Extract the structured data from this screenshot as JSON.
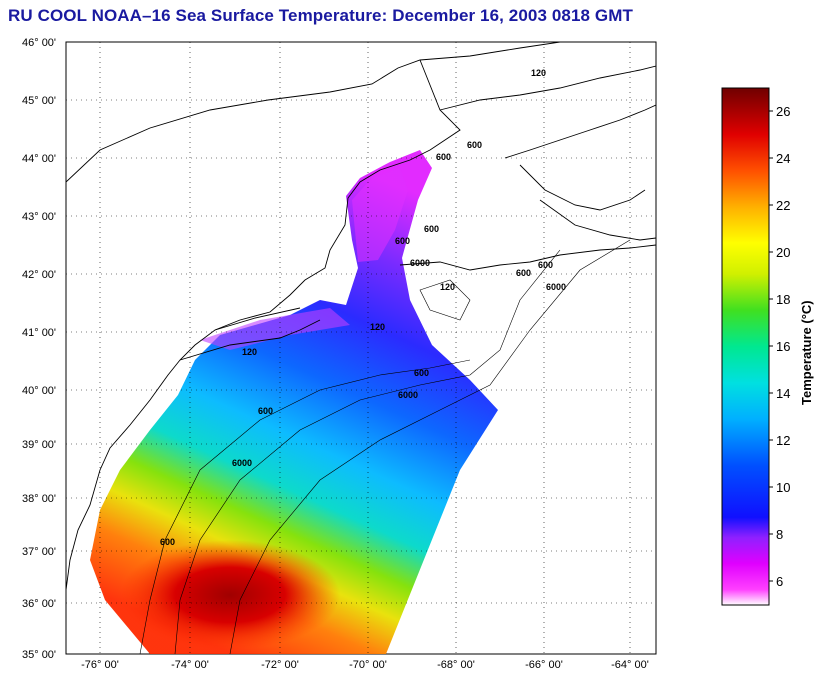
{
  "title": "RU COOL  NOAA–16  Sea Surface Temperature:  December 16, 2003 0818 GMT",
  "map": {
    "lat_labels": [
      "46° 00'",
      "45° 00'",
      "44° 00'",
      "43° 00'",
      "42° 00'",
      "41° 00'",
      "40° 00'",
      "39° 00'",
      "38° 00'",
      "37° 00'",
      "36° 00'",
      "35° 00'"
    ],
    "lon_labels": [
      "-76° 00'",
      "-74° 00'",
      "-72° 00'",
      "-70° 00'",
      "-68° 00'",
      "-66° 00'",
      "-64° 00'"
    ],
    "isobath_labels": [
      "120",
      "600",
      "600",
      "600",
      "600",
      "6000",
      "120",
      "120",
      "600",
      "600",
      "6000",
      "120",
      "6000",
      "600",
      "600",
      "600",
      "6000"
    ]
  },
  "colorbar": {
    "title": "Temperature (°C)",
    "ticks": [
      "26",
      "24",
      "22",
      "20",
      "18",
      "16",
      "14",
      "12",
      "10",
      "8",
      "6"
    ],
    "range": [
      5,
      27
    ],
    "colors": {
      "magenta": "#ff00ff",
      "purple": "#8a1cff",
      "blue": "#0000ff",
      "cyan": "#00e0e8",
      "green": "#2be02b",
      "yellow": "#ffff00",
      "orange": "#ff7a00",
      "red": "#e00000",
      "dark_red": "#7a0000"
    }
  }
}
